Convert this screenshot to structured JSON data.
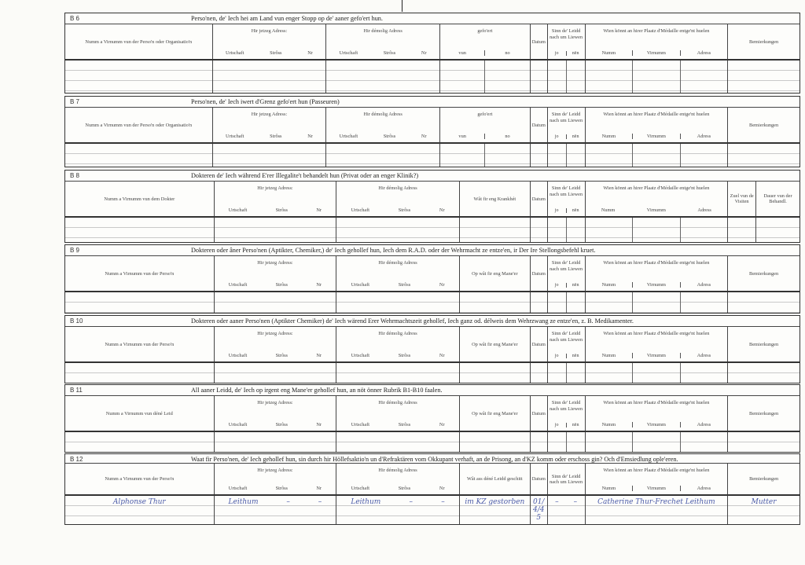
{
  "sections": [
    {
      "label": "B 6",
      "title": "Perso'nen, de' Iech hei am Land vun enger Stopp op de' aaner gefo'ert hun.",
      "columns": [
        {
          "label": "Numm a Virnumm vun der Perso'n oder Organisatio'n"
        },
        {
          "label": "Hir jetzeg Adress:",
          "sub": [
            "Urtschaft",
            "Strôss",
            "Nr"
          ]
        },
        {
          "label": "Hir démolig Adress",
          "sub": [
            "Urtschaft",
            "Strôss",
            "Nr"
          ]
        },
        {
          "label": "gefo'ert",
          "sub": [
            "vun",
            "no"
          ]
        },
        {
          "label": "Datum"
        },
        {
          "label": "Sinn de' Leidd nach um Liewen",
          "sub": [
            "jo",
            "nën"
          ]
        },
        {
          "label": "Wien könnt an hirer Plaatz d'Médaille entge'nt huelen",
          "sub": [
            "Numm",
            "Virnumm",
            "Adress"
          ]
        },
        {
          "label": "Bemierkungen"
        }
      ]
    },
    {
      "label": "B 7",
      "title": "Perso'nen, de' Iech iwert d'Grenz gefo'ert hun (Passeuren)",
      "columns": [
        {
          "label": "Numm a Virnumm vun der Perso'n oder Organisatio'n"
        },
        {
          "label": "Hir jetzeg Adress:",
          "sub": [
            "Urtschaft",
            "Strôss",
            "Nr"
          ]
        },
        {
          "label": "Hir démolig Adress",
          "sub": [
            "Urtschaft",
            "Strôss",
            "Nr"
          ]
        },
        {
          "label": "gefo'ert",
          "sub": [
            "vun",
            "no"
          ]
        },
        {
          "label": "Datum"
        },
        {
          "label": "Sinn de' Leidd nach um Liewen",
          "sub": [
            "jo",
            "nën"
          ]
        },
        {
          "label": "Wien könnt an hirer Plaatz d'Médaille entge'nt huelen",
          "sub": [
            "Numm",
            "Virnumm",
            "Adress"
          ]
        },
        {
          "label": "Bemierkungen"
        }
      ]
    },
    {
      "label": "B 8",
      "title": "Dokteren de' Iech während E'rer Illegalite't behandelt hun (Privat oder an enger Klinik?)",
      "columns": [
        {
          "label": "Numm a Virnumm vun dem Dokter"
        },
        {
          "label": "Hir jetzeg Adress:",
          "sub": [
            "Urtschaft",
            "Strôss",
            "Nr"
          ]
        },
        {
          "label": "Hir démolig Adress",
          "sub": [
            "Urtschaft",
            "Strôss",
            "Nr"
          ]
        },
        {
          "label": "Wât fir eng Krankhét"
        },
        {
          "label": "Datum"
        },
        {
          "label": "Sinn de' Leidd nach um Liewen",
          "sub": [
            "jo",
            "nën"
          ]
        },
        {
          "label": "Wien könnt an hirer Plaatz d'Médaille entge'nt huelen",
          "sub": [
            "Numm",
            "Virnumm",
            "Adress"
          ]
        },
        {
          "label": "Zuel vun de Visiten"
        },
        {
          "label": "Dauer vun der Behandl."
        }
      ]
    },
    {
      "label": "B 9",
      "title": "Dokteren oder âner Perso'nen (Aptikter, Chemiker,) de' Iech gehollef hun, Iech dem R.A.D. oder der Wehrmacht ze entze'en, ir Der Ire Stellongsbefehl kruet.",
      "columns": [
        {
          "label": "Numm a Virnumm vun der Perso'n"
        },
        {
          "label": "Hir jetzeg Adress:",
          "sub": [
            "Urtschaft",
            "Strôss",
            "Nr"
          ]
        },
        {
          "label": "Hir démolig Adress",
          "sub": [
            "Urtschaft",
            "Strôss",
            "Nr"
          ]
        },
        {
          "label": "Op wât fir eng Mane'er"
        },
        {
          "label": "Datum"
        },
        {
          "label": "Sinn de' Leidd nach um Liewen",
          "sub": [
            "jo",
            "nën"
          ]
        },
        {
          "label": "Wien könnt an hirer Plaatz d'Médaille entge'nt huelen",
          "sub": [
            "Numm",
            "Virnumm",
            "Adress"
          ]
        },
        {
          "label": "Bemierkungen"
        }
      ]
    },
    {
      "label": "B 10",
      "title": "Dokteren oder aaner Perso'nen (Aptikter Chemiker) de' Iech wärend Erer Wehrmachtszeit gehollef, Iech ganz od. délweis dem Wehrzwang ze entze'en, z. B. Medikamenter.",
      "columns": [
        {
          "label": "Numm a Virnumm vun der Perso'n"
        },
        {
          "label": "Hir jetzeg Adress:",
          "sub": [
            "Urtschaft",
            "Strôss",
            "Nr"
          ]
        },
        {
          "label": "Hir démolig Adress",
          "sub": [
            "Urtschaft",
            "Strôss",
            "Nr"
          ]
        },
        {
          "label": "Op wât fir eng Mane'er"
        },
        {
          "label": "Datum"
        },
        {
          "label": "Sinn de' Leidd nach um Liewen",
          "sub": [
            "jo",
            "nën"
          ]
        },
        {
          "label": "Wien könnt an hirer Plaatz d'Médaille entge'nt huelen",
          "sub": [
            "Numm",
            "Virnumm",
            "Adress"
          ]
        },
        {
          "label": "Bemierkungen"
        }
      ]
    },
    {
      "label": "B 11",
      "title": "All aaner Leidd, de' Iech op irgent eng Mane'er gehollef hun, an nöt önner Rubrik B1-B10 faalen.",
      "columns": [
        {
          "label": "Numm a Virnumm vun déné Leid"
        },
        {
          "label": "Hir jetzeg Adress:",
          "sub": [
            "Urtschaft",
            "Strôss",
            "Nr"
          ]
        },
        {
          "label": "Hir démolig Adress",
          "sub": [
            "Urtschaft",
            "Strôss",
            "Nr"
          ]
        },
        {
          "label": "Op wât fir eng Mane'er"
        },
        {
          "label": "Datum"
        },
        {
          "label": "Sinn de' Leidd nach um Liewen",
          "sub": [
            "jo",
            "nën"
          ]
        },
        {
          "label": "Wien könnt an hirer Plaatz d'Médaille entge'nt huelen",
          "sub": [
            "Numm",
            "Virnumm",
            "Adress"
          ]
        },
        {
          "label": "Bemierkungen"
        }
      ]
    },
    {
      "label": "B 12",
      "title": "Waat fir Perso'nen, de' Iech gehollef hun, sin durch hir Höllefsaktio'n un d'Refraktären vom Okkupant verhaft, an de Prisong, an d'KZ komm oder erschoss gin? Och d'Emsiedlung ople'eren.",
      "columns": [
        {
          "label": "Numm a Virnumm vun der Perso'n"
        },
        {
          "label": "Hir jetzeg Adress:",
          "sub": [
            "Urtschaft",
            "Strôss",
            "Nr"
          ]
        },
        {
          "label": "Hir démolig Adress",
          "sub": [
            "Urtschaft",
            "Strôss",
            "Nr"
          ]
        },
        {
          "label": "Wât ass déné Leidd geschitt"
        },
        {
          "label": "Datum"
        },
        {
          "label": "Sinn de' Leidd nach um Liewen"
        },
        {
          "label": "Wien könnt an hirer Plaatz d'Médaille entge'nt huelen",
          "sub": [
            "Numm",
            "Virnumm",
            "Adress"
          ]
        },
        {
          "label": "Bemierkungen"
        }
      ],
      "entries": [
        [
          "Alphonse Thur"
        ],
        [
          "Leithum",
          "–",
          "–"
        ],
        [
          "Leithum",
          "–",
          "–"
        ],
        [
          "im KZ gestorben"
        ],
        [
          "01/4/45"
        ],
        [
          "–",
          "–"
        ],
        [
          "Catherine Thur-Frechet Leithum"
        ],
        [
          "Mutter"
        ]
      ]
    }
  ],
  "colors": {
    "ink": "#333333",
    "handwriting": "#4a5aa8",
    "paper": "#fbfbf8"
  }
}
